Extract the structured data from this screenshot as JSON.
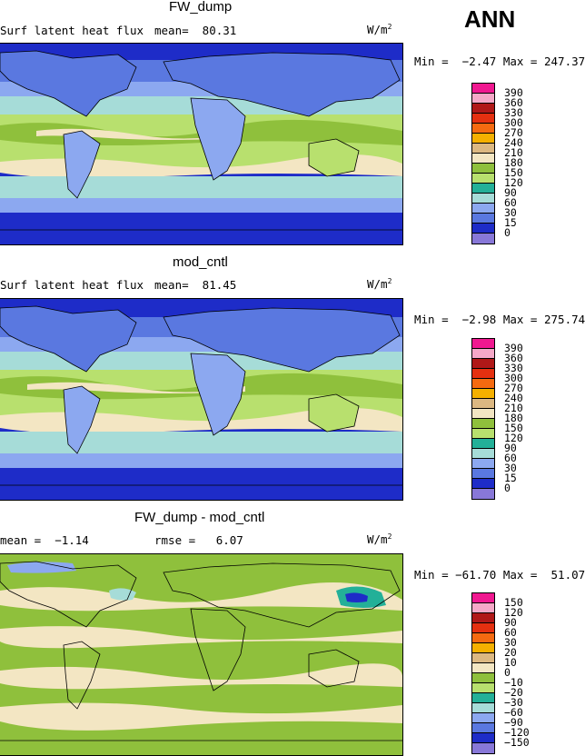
{
  "season": "ANN",
  "panels": [
    {
      "title": "FW_dump",
      "variable": "Surf latent heat flux",
      "stat1": "mean=  80.31",
      "stat2": "",
      "units": "W/m",
      "units_sup": "2",
      "minmax": "Min =  −2.47 Max = 247.37",
      "levels": [
        "390",
        "360",
        "330",
        "300",
        "270",
        "240",
        "210",
        "180",
        "150",
        "120",
        "90",
        "60",
        "30",
        "15",
        "0"
      ],
      "colors": [
        "#f01890",
        "#f5a8c8",
        "#b01818",
        "#e53010",
        "#f56a10",
        "#f5b000",
        "#ffe13f",
        "#dcb882",
        "#f3e6c3",
        "#8fc03c",
        "#b8e06e",
        "#23b098",
        "#a6dcd8",
        "#8ca8f0",
        "#5a78e0",
        "#1e2cc8",
        "#8878d8"
      ]
    },
    {
      "title": "mod_cntl",
      "variable": "Surf latent heat flux",
      "stat1": "mean=  81.45",
      "stat2": "",
      "units": "W/m",
      "units_sup": "2",
      "minmax": "Min =  −2.98 Max = 275.74",
      "levels": [
        "390",
        "360",
        "330",
        "300",
        "270",
        "240",
        "210",
        "180",
        "150",
        "120",
        "90",
        "60",
        "30",
        "15",
        "0"
      ],
      "colors": [
        "#f01890",
        "#f5a8c8",
        "#b01818",
        "#e53010",
        "#f56a10",
        "#f5b000",
        "#ffe13f",
        "#dcb882",
        "#f3e6c3",
        "#8fc03c",
        "#b8e06e",
        "#23b098",
        "#a6dcd8",
        "#8ca8f0",
        "#5a78e0",
        "#1e2cc8",
        "#8878d8"
      ]
    },
    {
      "title": "FW_dump - mod_cntl",
      "variable": "mean =  −1.14",
      "stat1": "rmse =   6.07",
      "stat2": "",
      "units": "W/m",
      "units_sup": "2",
      "minmax": "Min = −61.70 Max =  51.07",
      "levels": [
        "150",
        "120",
        "90",
        "60",
        "30",
        "20",
        "10",
        "0",
        "−10",
        "−20",
        "−30",
        "−60",
        "−90",
        "−120",
        "−150"
      ],
      "colors": [
        "#f01890",
        "#f5a8c8",
        "#b01818",
        "#e53010",
        "#f56a10",
        "#f5b000",
        "#ffe13f",
        "#dcb882",
        "#f3e6c3",
        "#8fc03c",
        "#b8e06e",
        "#23b098",
        "#a6dcd8",
        "#8ca8f0",
        "#5a78e0",
        "#1e2cc8",
        "#8878d8"
      ]
    }
  ]
}
